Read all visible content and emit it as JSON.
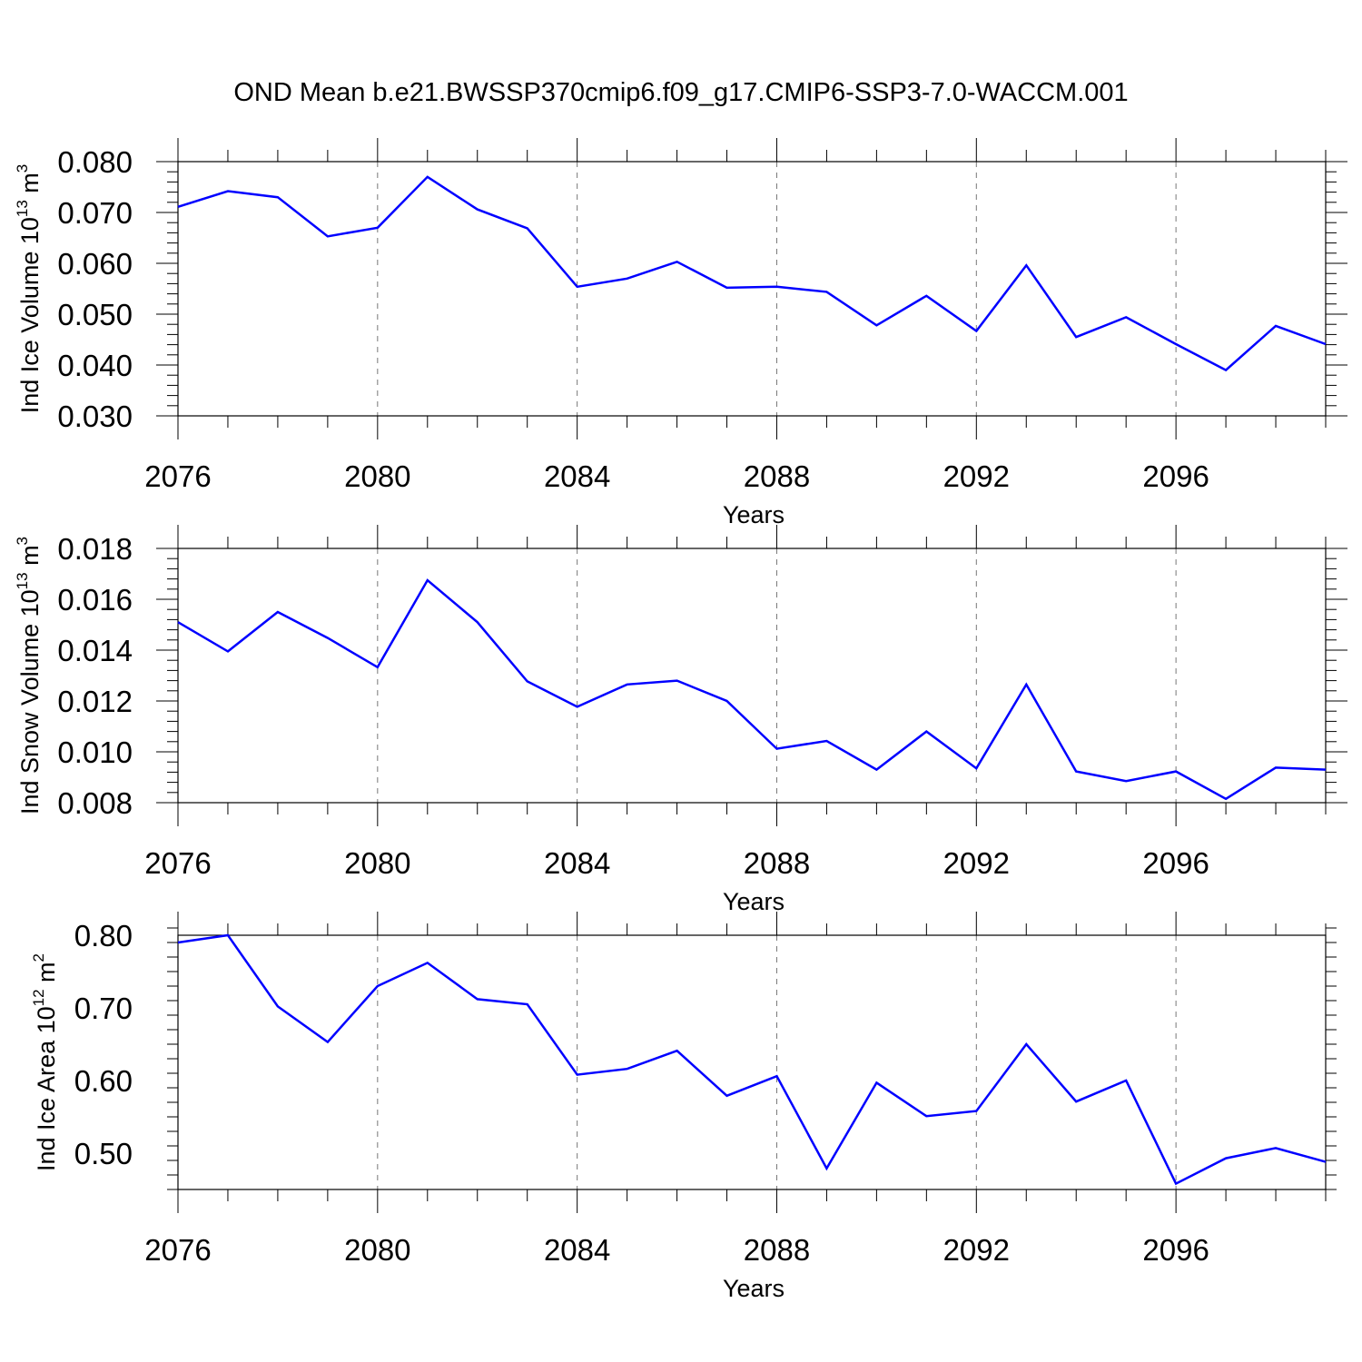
{
  "title": "OND Mean b.e21.BWSSP370cmip6.f09_g17.CMIP6-SSP3-7.0-WACCM.001",
  "colors": {
    "line": "#0000ff",
    "axis": "#000000",
    "grid": "#777777"
  },
  "chart_data": [
    {
      "type": "line",
      "xlabel": "Years",
      "ylabel": "Ind Ice Volume 10",
      "ylabel_sup": "13",
      "ylabel_unit": " m",
      "ylabel_unit_sup": "3",
      "xlim": [
        2076,
        2099
      ],
      "ylim": [
        0.03,
        0.08
      ],
      "xticks": [
        "2076",
        "2080",
        "2084",
        "2088",
        "2092",
        "2096"
      ],
      "yticks": [
        "0.030",
        "0.040",
        "0.050",
        "0.060",
        "0.070",
        "0.080"
      ],
      "grid": "vertical dashed at major x ticks",
      "series": [
        {
          "x": [
            2076,
            2077,
            2078,
            2079,
            2080,
            2081,
            2082,
            2083,
            2084,
            2085,
            2086,
            2087,
            2088,
            2089,
            2090,
            2091,
            2092,
            2093,
            2094,
            2095,
            2096,
            2097,
            2098,
            2099
          ],
          "values": [
            0.0711,
            0.0742,
            0.073,
            0.0653,
            0.067,
            0.077,
            0.0706,
            0.0669,
            0.0554,
            0.057,
            0.0603,
            0.0552,
            0.0554,
            0.0544,
            0.0478,
            0.0536,
            0.0467,
            0.0596,
            0.0455,
            0.0494,
            0.0441,
            0.039,
            0.0477,
            0.0441
          ]
        }
      ]
    },
    {
      "type": "line",
      "xlabel": "Years",
      "ylabel": "Ind Snow Volume 10",
      "ylabel_sup": "13",
      "ylabel_unit": " m",
      "ylabel_unit_sup": "3",
      "xlim": [
        2076,
        2099
      ],
      "ylim": [
        0.008,
        0.018
      ],
      "xticks": [
        "2076",
        "2080",
        "2084",
        "2088",
        "2092",
        "2096"
      ],
      "yticks": [
        "0.008",
        "0.010",
        "0.012",
        "0.014",
        "0.016",
        "0.018"
      ],
      "grid": "vertical dashed at major x ticks",
      "series": [
        {
          "x": [
            2076,
            2077,
            2078,
            2079,
            2080,
            2081,
            2082,
            2083,
            2084,
            2085,
            2086,
            2087,
            2088,
            2089,
            2090,
            2091,
            2092,
            2093,
            2094,
            2095,
            2096,
            2097,
            2098,
            2099
          ],
          "values": [
            0.0151,
            0.01395,
            0.0155,
            0.01448,
            0.01333,
            0.01675,
            0.0151,
            0.01277,
            0.01177,
            0.01265,
            0.0128,
            0.012,
            0.01012,
            0.01043,
            0.0093,
            0.0108,
            0.00935,
            0.01265,
            0.00923,
            0.00885,
            0.00923,
            0.00815,
            0.00938,
            0.0093
          ]
        }
      ]
    },
    {
      "type": "line",
      "xlabel": "Years",
      "ylabel": "Ind Ice Area 10",
      "ylabel_sup": "12",
      "ylabel_unit": " m",
      "ylabel_unit_sup": "2",
      "xlim": [
        2076,
        2099
      ],
      "ylim": [
        0.45,
        0.8
      ],
      "xticks": [
        "2076",
        "2080",
        "2084",
        "2088",
        "2092",
        "2096"
      ],
      "yticks": [
        "0.50",
        "0.60",
        "0.70",
        "0.80"
      ],
      "grid": "vertical dashed at major x ticks",
      "series": [
        {
          "x": [
            2076,
            2077,
            2078,
            2079,
            2080,
            2081,
            2082,
            2083,
            2084,
            2085,
            2086,
            2087,
            2088,
            2089,
            2090,
            2091,
            2092,
            2093,
            2094,
            2095,
            2096,
            2097,
            2098,
            2099
          ],
          "values": [
            0.79,
            0.8,
            0.702,
            0.653,
            0.73,
            0.762,
            0.712,
            0.705,
            0.608,
            0.616,
            0.641,
            0.579,
            0.606,
            0.479,
            0.597,
            0.551,
            0.558,
            0.65,
            0.571,
            0.6,
            0.458,
            0.493,
            0.507,
            0.488
          ]
        }
      ]
    }
  ]
}
